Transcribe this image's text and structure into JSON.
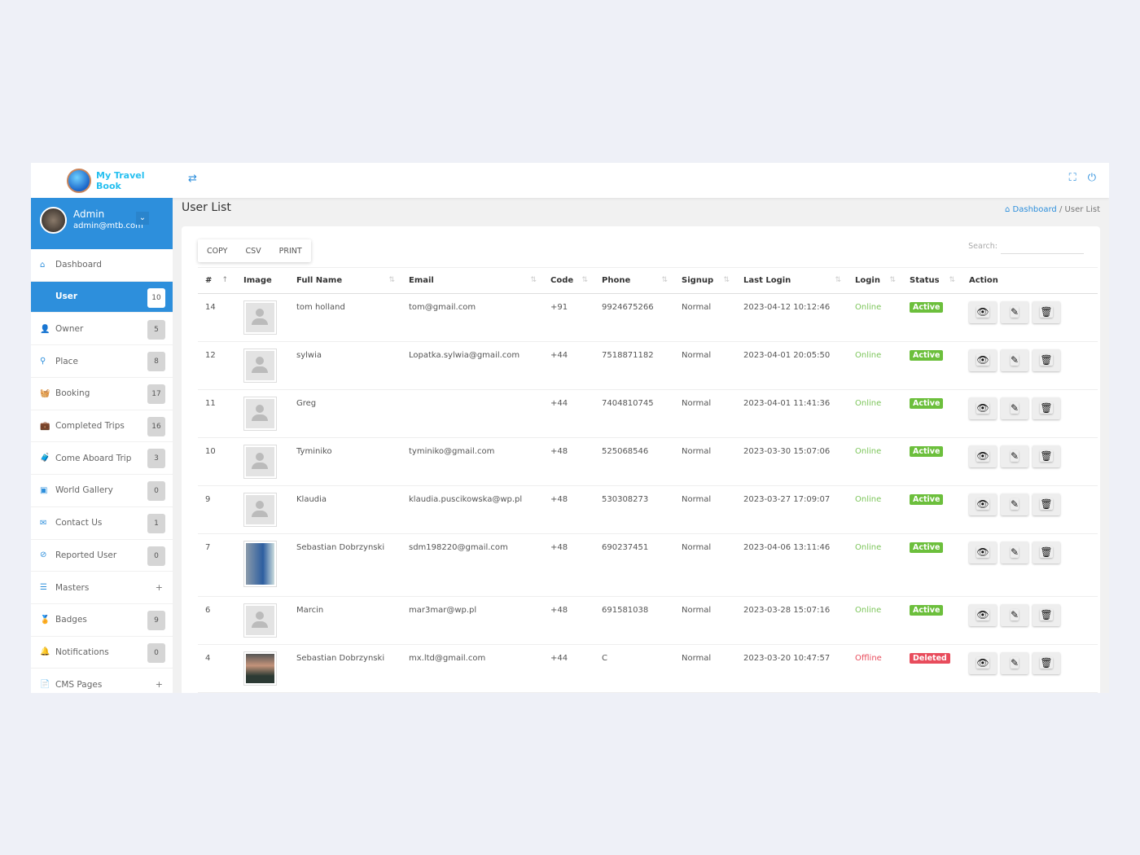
{
  "app": {
    "logo_text": "My Travel Book"
  },
  "header": {
    "toggle_icon": "swap-arrows-icon",
    "fullscreen_icon": "expand-icon",
    "power_icon": "power-icon"
  },
  "profile": {
    "name": "Admin",
    "email": "admin@mtb.com"
  },
  "sidebar": {
    "items": [
      {
        "label": "Dashboard",
        "icon": "home-icon",
        "glyph": "⌂"
      },
      {
        "label": "User",
        "badge": "10",
        "active": true
      },
      {
        "label": "Owner",
        "badge": "5",
        "icon": "user-icon",
        "glyph": "👤"
      },
      {
        "label": "Place",
        "badge": "8",
        "icon": "map-pin-icon",
        "glyph": "⚲"
      },
      {
        "label": "Booking",
        "badge": "17",
        "icon": "basket-icon",
        "glyph": "🧺"
      },
      {
        "label": "Completed Trips",
        "badge": "16",
        "icon": "briefcase-check-icon",
        "glyph": "💼"
      },
      {
        "label": "Come Aboard Trip",
        "badge": "3",
        "icon": "suitcase-icon",
        "glyph": "🧳"
      },
      {
        "label": "World Gallery",
        "badge": "0",
        "icon": "gallery-icon",
        "glyph": "▣"
      },
      {
        "label": "Contact Us",
        "badge": "1",
        "icon": "envelope-icon",
        "glyph": "✉"
      },
      {
        "label": "Reported User",
        "badge": "0",
        "icon": "ban-icon",
        "glyph": "⊘"
      },
      {
        "label": "Masters",
        "expand": "+",
        "icon": "list-icon",
        "glyph": "☰"
      },
      {
        "label": "Badges",
        "badge": "9",
        "icon": "badge-icon",
        "glyph": "🏅"
      },
      {
        "label": "Notifications",
        "badge": "0",
        "icon": "bell-icon",
        "glyph": "🔔"
      },
      {
        "label": "CMS Pages",
        "expand": "+",
        "icon": "file-icon",
        "glyph": "📄"
      }
    ]
  },
  "page": {
    "title": "User List",
    "breadcrumb": {
      "home": "Dashboard",
      "sep": "/",
      "current": "User List"
    }
  },
  "toolbar": {
    "copy": "COPY",
    "csv": "CSV",
    "print": "PRINT",
    "search_label": "Search:",
    "search_value": ""
  },
  "table": {
    "columns": [
      "#",
      "Image",
      "Full Name",
      "Email",
      "Code",
      "Phone",
      "Signup",
      "Last Login",
      "Login",
      "Status",
      "Action"
    ],
    "rows": [
      {
        "id": "14",
        "image": "placeholder",
        "name": "tom holland",
        "email": "tom@gmail.com",
        "code": "+91",
        "phone": "9924675266",
        "signup": "Normal",
        "last_login": "2023-04-12 10:12:46",
        "login": "Online",
        "status": "Active"
      },
      {
        "id": "12",
        "image": "placeholder",
        "name": "sylwia",
        "email": "Lopatka.sylwia@gmail.com",
        "code": "+44",
        "phone": "7518871182",
        "signup": "Normal",
        "last_login": "2023-04-01 20:05:50",
        "login": "Online",
        "status": "Active"
      },
      {
        "id": "11",
        "image": "placeholder",
        "name": "Greg",
        "email": "",
        "code": "+44",
        "phone": "7404810745",
        "signup": "Normal",
        "last_login": "2023-04-01 11:41:36",
        "login": "Online",
        "status": "Active"
      },
      {
        "id": "10",
        "image": "placeholder",
        "name": "Tyminiko",
        "email": "tyminiko@gmail.com",
        "code": "+48",
        "phone": "525068546",
        "signup": "Normal",
        "last_login": "2023-03-30 15:07:06",
        "login": "Online",
        "status": "Active"
      },
      {
        "id": "9",
        "image": "placeholder",
        "name": "Klaudia",
        "email": "klaudia.puscikowska@wp.pl",
        "code": "+48",
        "phone": "530308273",
        "signup": "Normal",
        "last_login": "2023-03-27 17:09:07",
        "login": "Online",
        "status": "Active"
      },
      {
        "id": "7",
        "image": "photo1",
        "name": "Sebastian Dobrzynski",
        "email": "sdm198220@gmail.com",
        "code": "+48",
        "phone": "690237451",
        "signup": "Normal",
        "last_login": "2023-04-06 13:11:46",
        "login": "Online",
        "status": "Active"
      },
      {
        "id": "6",
        "image": "placeholder",
        "name": "Marcin",
        "email": "mar3mar@wp.pl",
        "code": "+48",
        "phone": "691581038",
        "signup": "Normal",
        "last_login": "2023-03-28 15:07:16",
        "login": "Online",
        "status": "Active"
      },
      {
        "id": "4",
        "image": "photo2",
        "name": "Sebastian Dobrzynski",
        "email": "mx.ltd@gmail.com",
        "code": "+44",
        "phone": "C",
        "signup": "Normal",
        "last_login": "2023-03-20 10:47:57",
        "login": "Offline",
        "status": "Deleted"
      }
    ],
    "actions": [
      {
        "icon": "eye-icon",
        "glyph": "👁"
      },
      {
        "icon": "pencil-icon",
        "glyph": "✎"
      },
      {
        "icon": "trash-icon",
        "glyph": "🗑"
      }
    ]
  },
  "colors": {
    "primary": "#2d8fdc",
    "active": "#6cbf3c",
    "deleted": "#e84c5c",
    "online": "#7cc55a"
  }
}
